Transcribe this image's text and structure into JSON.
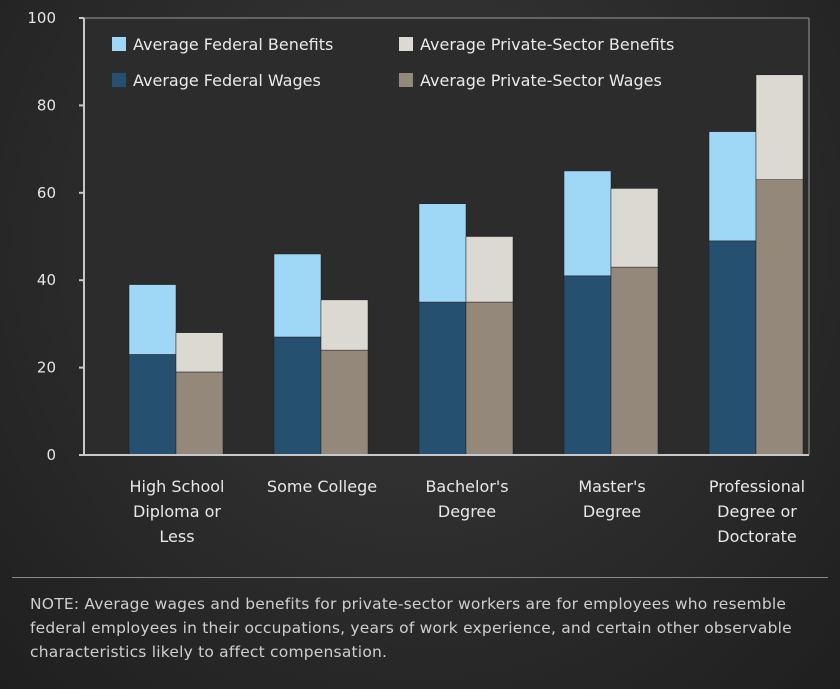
{
  "chart_data": {
    "type": "bar",
    "stacked": true,
    "grouped": true,
    "title": "",
    "xlabel": "",
    "ylabel": "",
    "ylim": [
      0,
      100
    ],
    "yticks": [
      0,
      20,
      40,
      60,
      80,
      100
    ],
    "grid": false,
    "legend_position": "top-left",
    "categories": [
      [
        "High School",
        "Diploma or",
        "Less"
      ],
      [
        "Some College"
      ],
      [
        "Bachelor's",
        "Degree"
      ],
      [
        "Master's",
        "Degree"
      ],
      [
        "Professional",
        "Degree or",
        "Doctorate"
      ]
    ],
    "series": [
      {
        "name": "Average Federal Wages",
        "group": "federal",
        "part": "wages",
        "color": "#265070",
        "values": [
          23,
          27,
          35,
          41,
          49
        ]
      },
      {
        "name": "Average Federal Benefits",
        "group": "federal",
        "part": "benefits",
        "color": "#9fd8f6",
        "values": [
          16,
          19,
          22.5,
          24,
          25
        ]
      },
      {
        "name": "Average Private-Sector Wages",
        "group": "private",
        "part": "wages",
        "color": "#93887a",
        "values": [
          19,
          24,
          35,
          43,
          63
        ]
      },
      {
        "name": "Average Private-Sector Benefits",
        "group": "private",
        "part": "benefits",
        "color": "#dcd8d2",
        "values": [
          9,
          11.5,
          15,
          18,
          24
        ]
      }
    ],
    "legend": [
      {
        "label": "Average Federal Benefits",
        "color": "#9fd8f6"
      },
      {
        "label": "Average Private-Sector Benefits",
        "color": "#dcd8d2"
      },
      {
        "label": "Average Federal Wages",
        "color": "#265070"
      },
      {
        "label": "Average Private-Sector Wages",
        "color": "#93887a"
      }
    ]
  },
  "note": "NOTE:  Average wages and benefits for private-sector workers are for employees who resemble federal employees in their occupations, years of work experience, and certain other observable characteristics likely to affect compensation."
}
